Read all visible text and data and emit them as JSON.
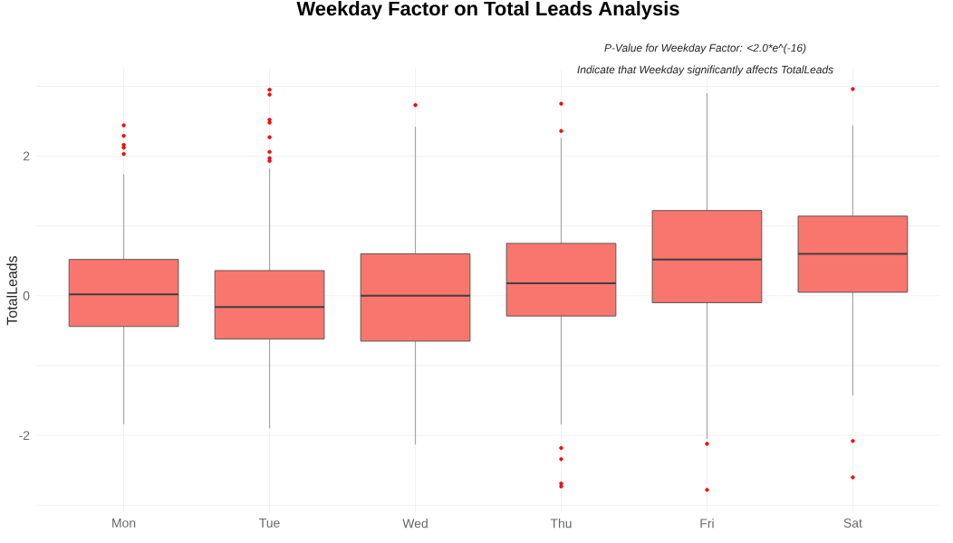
{
  "chart_data": {
    "type": "box",
    "title": "Weekday Factor on Total Leads Analysis",
    "ylabel": "TotalLeads",
    "annotations": [
      "P-Value for Weekday Factor: <2.0*e^(-16)",
      "Indicate that Weekday significantly affects TotalLeads"
    ],
    "categories": [
      "Mon",
      "Tue",
      "Wed",
      "Thu",
      "Fri",
      "Sat"
    ],
    "color": "#f8766d",
    "boxes": [
      {
        "low": -1.84,
        "q1": -0.44,
        "median": 0.02,
        "q3": 0.52,
        "high": 1.74,
        "outliers": [
          2.44,
          2.29,
          2.16,
          2.12,
          2.03
        ]
      },
      {
        "low": -1.9,
        "q1": -0.62,
        "median": -0.16,
        "q3": 0.36,
        "high": 1.82,
        "outliers": [
          2.95,
          2.88,
          2.52,
          2.48,
          2.27,
          2.06,
          1.97,
          1.93
        ]
      },
      {
        "low": -2.13,
        "q1": -0.65,
        "median": 0.0,
        "q3": 0.6,
        "high": 2.42,
        "outliers": [
          2.73
        ]
      },
      {
        "low": -1.84,
        "q1": -0.29,
        "median": 0.18,
        "q3": 0.75,
        "high": 2.26,
        "outliers": [
          2.75,
          2.36,
          -2.18,
          -2.34,
          -2.69,
          -2.73
        ]
      },
      {
        "low": -2.05,
        "q1": -0.1,
        "median": 0.52,
        "q3": 1.22,
        "high": 2.9,
        "outliers": [
          -2.12,
          -2.78
        ]
      },
      {
        "low": -1.43,
        "q1": 0.05,
        "median": 0.6,
        "q3": 1.14,
        "high": 2.44,
        "outliers": [
          2.96,
          -2.08,
          -2.6
        ]
      }
    ],
    "ylim": [
      -3.1,
      3.25
    ],
    "yticks": [
      {
        "value": -3,
        "label": null
      },
      -2,
      {
        "value": -1,
        "label": null
      },
      0,
      {
        "value": 1,
        "label": null
      },
      2,
      {
        "value": 3,
        "label": null
      }
    ],
    "grid": true
  }
}
